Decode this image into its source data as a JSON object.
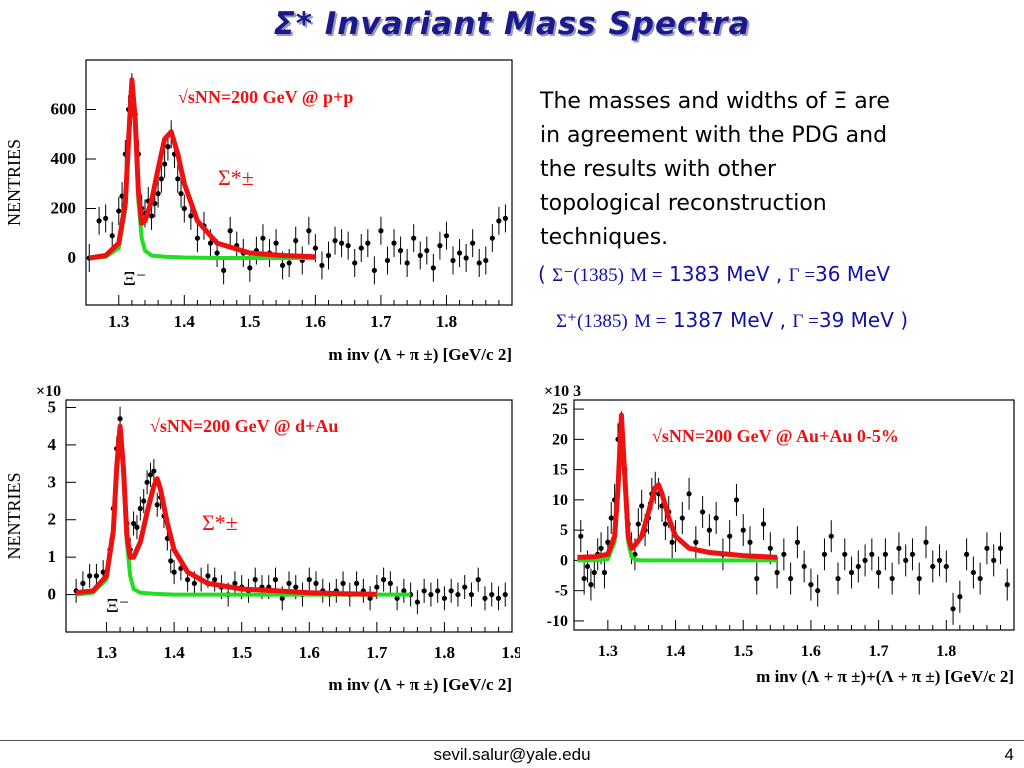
{
  "slide": {
    "title": "Σ* Invariant Mass Spectra",
    "description_lines": [
      "The masses and widths of Ξ are",
      "in agreement with the PDG and",
      "the results with other",
      "topological reconstruction",
      "techniques."
    ],
    "result_lines": [
      {
        "open": "(",
        "particle": "Σ⁻(1385)",
        "mass_label": "M =",
        "mass_value": "1383 MeV ,",
        "width_label": "Γ =",
        "width_value": "36 MeV",
        "close": ""
      },
      {
        "open": "",
        "particle": "Σ⁺(1385)",
        "mass_label": "M =",
        "mass_value": "1387 MeV ,",
        "width_label": "Γ =",
        "width_value": "39 MeV",
        "close": ")"
      }
    ],
    "footer_email": "sevil.salur@yale.edu",
    "page_number": "4"
  },
  "colors": {
    "title": "#1a1a8c",
    "fit_total": "#ee1111",
    "fit_background": "#22dd22",
    "data_points": "#000000",
    "annotation": "#ee1111",
    "body_text_blue": "#1111aa"
  },
  "chart_data": [
    {
      "type": "scatter",
      "system_label": "√sNN=200 GeV @ p+p",
      "peak_label": "Σ*±",
      "bg_label": "Ξ⁻",
      "ylabel": "NENTRIES",
      "xlabel": "m inv (Λ + π ±) [GeV/c 2]",
      "xticks": [
        "1.3",
        "1.4",
        "1.5",
        "1.6",
        "1.7",
        "1.8"
      ],
      "yticks": [
        "0",
        "200",
        "400",
        "600"
      ],
      "ylim": [
        -190,
        800
      ],
      "xlim": [
        1.25,
        1.9
      ],
      "x": [
        1.255,
        1.27,
        1.28,
        1.29,
        1.3,
        1.305,
        1.31,
        1.315,
        1.32,
        1.325,
        1.33,
        1.335,
        1.34,
        1.345,
        1.35,
        1.355,
        1.36,
        1.365,
        1.37,
        1.375,
        1.38,
        1.385,
        1.39,
        1.395,
        1.4,
        1.41,
        1.42,
        1.43,
        1.44,
        1.45,
        1.46,
        1.47,
        1.48,
        1.49,
        1.5,
        1.51,
        1.52,
        1.53,
        1.54,
        1.55,
        1.56,
        1.57,
        1.58,
        1.59,
        1.6,
        1.61,
        1.62,
        1.63,
        1.64,
        1.65,
        1.66,
        1.67,
        1.68,
        1.69,
        1.7,
        1.71,
        1.72,
        1.73,
        1.74,
        1.75,
        1.76,
        1.77,
        1.78,
        1.79,
        1.8,
        1.81,
        1.82,
        1.83,
        1.84,
        1.85,
        1.86,
        1.87,
        1.88,
        1.89
      ],
      "y": [
        0,
        150,
        160,
        90,
        190,
        250,
        420,
        600,
        690,
        580,
        420,
        200,
        180,
        230,
        170,
        220,
        260,
        320,
        380,
        450,
        500,
        420,
        320,
        260,
        200,
        170,
        80,
        130,
        60,
        20,
        -50,
        110,
        50,
        20,
        -40,
        30,
        80,
        20,
        60,
        -30,
        -20,
        70,
        -10,
        110,
        40,
        -30,
        10,
        70,
        60,
        50,
        -20,
        40,
        60,
        -50,
        110,
        -10,
        60,
        30,
        -20,
        80,
        10,
        30,
        -40,
        50,
        90,
        -10,
        20,
        0,
        60,
        -20,
        -10,
        80,
        150,
        160
      ],
      "fit_total": {
        "x": [
          1.255,
          1.28,
          1.3,
          1.31,
          1.315,
          1.32,
          1.325,
          1.33,
          1.335,
          1.34,
          1.35,
          1.36,
          1.37,
          1.38,
          1.39,
          1.4,
          1.42,
          1.45,
          1.5,
          1.55,
          1.6
        ],
        "y": [
          0,
          10,
          60,
          220,
          480,
          720,
          560,
          270,
          140,
          150,
          230,
          360,
          480,
          510,
          420,
          300,
          150,
          60,
          20,
          10,
          5
        ]
      },
      "fit_bg": {
        "x": [
          1.255,
          1.28,
          1.3,
          1.31,
          1.315,
          1.32,
          1.325,
          1.33,
          1.335,
          1.34,
          1.35,
          1.37,
          1.4,
          1.45,
          1.5,
          1.55,
          1.6
        ],
        "y": [
          0,
          5,
          40,
          200,
          450,
          700,
          540,
          230,
          80,
          30,
          10,
          5,
          2,
          0,
          0,
          0,
          0
        ]
      }
    },
    {
      "type": "scatter",
      "system_label": "√sNN=200 GeV @ d+Au",
      "peak_label": "Σ*±",
      "bg_label": "Ξ⁻",
      "ylabel": "NENTRIES",
      "xlabel": "m inv (Λ + π ±) [GeV/c 2]",
      "yexp": "×10",
      "xticks": [
        "1.3",
        "1.4",
        "1.5",
        "1.6",
        "1.7",
        "1.8",
        "1.9"
      ],
      "yticks": [
        "0",
        "1",
        "2",
        "3",
        "4",
        "5"
      ],
      "ylim": [
        -1.0,
        5.2
      ],
      "xlim": [
        1.24,
        1.9
      ],
      "x": [
        1.255,
        1.265,
        1.275,
        1.285,
        1.295,
        1.305,
        1.31,
        1.315,
        1.32,
        1.325,
        1.33,
        1.335,
        1.34,
        1.345,
        1.35,
        1.355,
        1.36,
        1.365,
        1.37,
        1.375,
        1.38,
        1.385,
        1.39,
        1.395,
        1.4,
        1.41,
        1.42,
        1.43,
        1.44,
        1.45,
        1.46,
        1.47,
        1.48,
        1.49,
        1.5,
        1.51,
        1.52,
        1.53,
        1.54,
        1.55,
        1.56,
        1.57,
        1.58,
        1.59,
        1.6,
        1.61,
        1.62,
        1.63,
        1.64,
        1.65,
        1.66,
        1.67,
        1.68,
        1.69,
        1.7,
        1.71,
        1.72,
        1.73,
        1.74,
        1.75,
        1.76,
        1.77,
        1.78,
        1.79,
        1.8,
        1.81,
        1.82,
        1.83,
        1.84,
        1.85,
        1.86,
        1.87,
        1.88,
        1.89
      ],
      "y": [
        0.1,
        0.3,
        0.5,
        0.5,
        0.6,
        1.2,
        2.3,
        3.9,
        4.7,
        3.3,
        1.9,
        1.2,
        1.9,
        1.8,
        2.3,
        2.5,
        3.0,
        3.2,
        3.3,
        2.4,
        2.6,
        2.1,
        1.5,
        0.9,
        0.6,
        0.7,
        0.4,
        0.3,
        0.4,
        0.5,
        0.4,
        0.2,
        0.0,
        0.3,
        0.2,
        0.1,
        0.4,
        0.2,
        0.2,
        0.4,
        -0.1,
        0.3,
        0.2,
        0.0,
        0.4,
        0.3,
        0.1,
        0.0,
        0.1,
        0.3,
        0.0,
        0.3,
        0.1,
        -0.1,
        0.2,
        0.4,
        0.3,
        -0.1,
        0.1,
        0.0,
        -0.2,
        0.1,
        0.0,
        0.1,
        -0.1,
        0.1,
        0.0,
        0.2,
        0.0,
        0.4,
        -0.1,
        0.0,
        -0.1,
        0.0
      ],
      "fit_total": {
        "x": [
          1.255,
          1.28,
          1.3,
          1.31,
          1.315,
          1.32,
          1.325,
          1.33,
          1.335,
          1.34,
          1.35,
          1.36,
          1.37,
          1.375,
          1.38,
          1.39,
          1.4,
          1.42,
          1.45,
          1.5,
          1.55,
          1.6,
          1.65,
          1.7
        ],
        "y": [
          0.05,
          0.1,
          0.5,
          1.7,
          3.4,
          4.5,
          3.4,
          1.6,
          1.0,
          1.0,
          1.4,
          2.2,
          2.9,
          3.1,
          2.8,
          1.9,
          1.2,
          0.6,
          0.3,
          0.15,
          0.1,
          0.05,
          0.02,
          0.01
        ]
      },
      "fit_bg": {
        "x": [
          1.255,
          1.28,
          1.3,
          1.31,
          1.315,
          1.32,
          1.325,
          1.33,
          1.335,
          1.34,
          1.35,
          1.37,
          1.4,
          1.45,
          1.5,
          1.55,
          1.6,
          1.65,
          1.7,
          1.75
        ],
        "y": [
          0.0,
          0.05,
          0.4,
          1.6,
          3.2,
          4.4,
          3.2,
          1.4,
          0.5,
          0.15,
          0.05,
          0.02,
          0.0,
          0,
          0,
          0,
          0,
          0,
          0,
          0
        ]
      }
    },
    {
      "type": "scatter",
      "system_label": "√sNN=200 GeV @ Au+Au 0-5%",
      "ylabel": "",
      "xlabel": "m inv (Λ + π ±)+(Λ + π ±) [GeV/c 2]",
      "yexp": "×10 3",
      "xticks": [
        "1.3",
        "1.4",
        "1.5",
        "1.6",
        "1.7",
        "1.8"
      ],
      "yticks": [
        "-10",
        "-5",
        "0",
        "5",
        "10",
        "15",
        "20",
        "25"
      ],
      "ylim": [
        -11.5,
        26.5
      ],
      "xlim": [
        1.25,
        1.9
      ],
      "x": [
        1.26,
        1.265,
        1.27,
        1.275,
        1.28,
        1.285,
        1.29,
        1.295,
        1.3,
        1.305,
        1.31,
        1.315,
        1.32,
        1.325,
        1.33,
        1.335,
        1.34,
        1.345,
        1.35,
        1.355,
        1.36,
        1.365,
        1.37,
        1.375,
        1.38,
        1.385,
        1.39,
        1.395,
        1.4,
        1.41,
        1.42,
        1.43,
        1.44,
        1.45,
        1.46,
        1.47,
        1.48,
        1.49,
        1.5,
        1.51,
        1.52,
        1.53,
        1.54,
        1.55,
        1.56,
        1.57,
        1.58,
        1.59,
        1.6,
        1.61,
        1.62,
        1.63,
        1.64,
        1.65,
        1.66,
        1.67,
        1.68,
        1.69,
        1.7,
        1.71,
        1.72,
        1.73,
        1.74,
        1.75,
        1.76,
        1.77,
        1.78,
        1.79,
        1.8,
        1.81,
        1.82,
        1.83,
        1.84,
        1.85,
        1.86,
        1.87,
        1.88,
        1.89
      ],
      "y": [
        4,
        -3,
        -1,
        -4,
        -2,
        1,
        2,
        -2,
        3,
        7,
        10,
        20,
        22,
        15,
        6,
        2,
        1,
        6,
        9,
        5,
        7,
        11,
        12,
        11,
        9,
        6,
        8,
        3,
        4,
        7,
        11,
        3,
        8,
        5,
        7,
        1,
        4,
        10,
        5,
        3,
        -3,
        6,
        2,
        -2,
        1,
        -3,
        3,
        -1,
        -4,
        -5,
        1,
        4,
        -3,
        1,
        -2,
        -1,
        0,
        1,
        -2,
        1,
        -3,
        2,
        0,
        1,
        -3,
        3,
        -1,
        0,
        -1,
        -8,
        -6,
        1,
        -2,
        -3,
        2,
        0,
        2,
        -4
      ],
      "fit_total": {
        "x": [
          1.255,
          1.28,
          1.3,
          1.31,
          1.315,
          1.32,
          1.325,
          1.33,
          1.335,
          1.34,
          1.35,
          1.36,
          1.37,
          1.375,
          1.38,
          1.39,
          1.4,
          1.42,
          1.45,
          1.5,
          1.55
        ],
        "y": [
          0.5,
          0.6,
          1,
          4,
          12,
          24,
          14,
          4,
          2,
          2.5,
          4,
          8,
          12,
          12.5,
          11,
          7,
          4,
          2,
          1.3,
          0.8,
          0.5
        ]
      },
      "fit_bg": {
        "x": [
          1.255,
          1.28,
          1.3,
          1.31,
          1.315,
          1.32,
          1.325,
          1.33,
          1.335,
          1.34,
          1.35,
          1.37,
          1.4,
          1.45,
          1.5,
          1.55
        ],
        "y": [
          0,
          0,
          0.2,
          3,
          11,
          23,
          13,
          3,
          0.6,
          0.1,
          0,
          0,
          0,
          0,
          0,
          0
        ]
      }
    }
  ]
}
